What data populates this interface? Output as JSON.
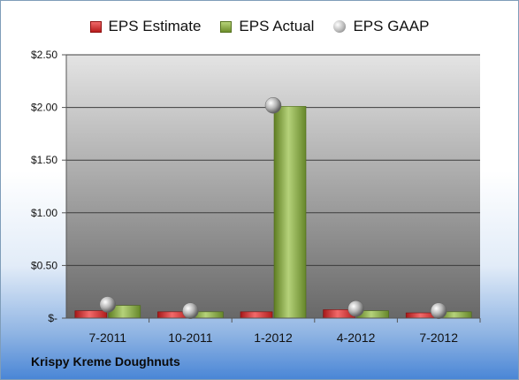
{
  "chart_data": {
    "type": "bar",
    "categories": [
      "7-2011",
      "10-2011",
      "1-2012",
      "4-2012",
      "7-2012"
    ],
    "series": [
      {
        "name": "EPS Estimate",
        "type": "bar",
        "values": [
          0.07,
          0.06,
          0.06,
          0.08,
          0.05
        ]
      },
      {
        "name": "EPS Actual",
        "type": "bar",
        "values": [
          0.12,
          0.06,
          2.01,
          0.07,
          0.06
        ]
      },
      {
        "name": "EPS GAAP",
        "type": "marker",
        "values": [
          0.13,
          0.07,
          2.02,
          0.09,
          0.07
        ]
      }
    ],
    "y_ticks": [
      "$-",
      "$0.50",
      "$1.00",
      "$1.50",
      "$2.00",
      "$2.50"
    ],
    "ylim": [
      0,
      2.5
    ],
    "legend": "top",
    "grid": true,
    "caption": "Krispy Kreme Doughnuts",
    "colors": {
      "estimate": "#c0282c",
      "actual": "#7a9a36",
      "gaap": "#a0a0a0"
    }
  }
}
